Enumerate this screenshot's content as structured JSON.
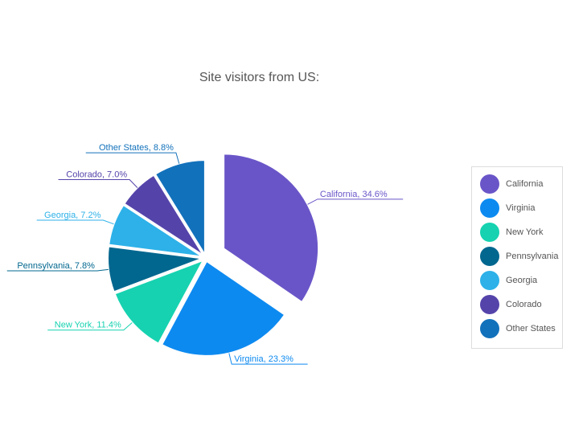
{
  "chart_data": {
    "type": "pie",
    "title": "Site visitors from US:",
    "slices": [
      {
        "label": "California",
        "value": 34.6,
        "display": "California, 34.6%",
        "color": "#6a55c8",
        "exploded": true
      },
      {
        "label": "Virginia",
        "value": 23.3,
        "display": "Virginia, 23.3%",
        "color": "#0d8af0"
      },
      {
        "label": "New York",
        "value": 11.4,
        "display": "New York, 11.4%",
        "color": "#16d2b0"
      },
      {
        "label": "Pennsylvania",
        "value": 7.8,
        "display": "Pennsylvania, 7.8%",
        "color": "#02678f"
      },
      {
        "label": "Georgia",
        "value": 7.2,
        "display": "Georgia, 7.2%",
        "color": "#2db1e8"
      },
      {
        "label": "Colorado",
        "value": 7.0,
        "display": "Colorado, 7.0%",
        "color": "#5444aa"
      },
      {
        "label": "Other States",
        "value": 8.8,
        "display": "Other States, 8.8%",
        "color": "#1271bb"
      }
    ],
    "legend_position": "right"
  }
}
